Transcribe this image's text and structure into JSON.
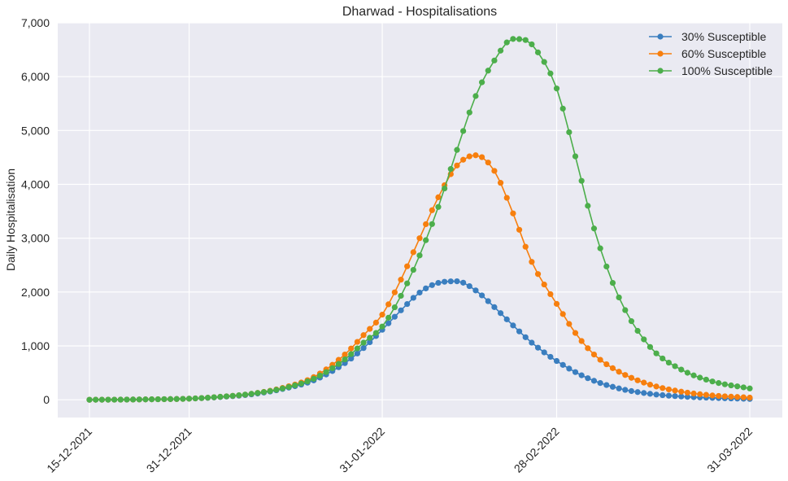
{
  "chart_data": {
    "type": "line",
    "title": "Dharwad - Hospitalisations",
    "xlabel": "",
    "ylabel": "Daily Hospitalisation",
    "x_start": "15-12-2021",
    "x_end": "31-03-2022",
    "x_ticks": [
      "15-12-2021",
      "31-12-2021",
      "31-01-2022",
      "28-02-2022",
      "31-03-2022"
    ],
    "ylim": [
      -330,
      7000
    ],
    "y_ticks": [
      0,
      1000,
      2000,
      3000,
      4000,
      5000,
      6000,
      7000
    ],
    "y_tick_labels": [
      "0",
      "1,000",
      "2,000",
      "3,000",
      "4,000",
      "5,000",
      "6,000",
      "7,000"
    ],
    "grid": true,
    "legend_position": "top-right",
    "background_color": "#eaeaf2",
    "series": [
      {
        "name": "30% Susceptible",
        "color": "#3a7ebf",
        "dates": [
          "15-12-2021",
          "20-12-2021",
          "25-12-2021",
          "31-12-2021",
          "05-01-2022",
          "10-01-2022",
          "15-01-2022",
          "20-01-2022",
          "25-01-2022",
          "28-01-2022",
          "31-01-2022",
          "03-02-2022",
          "06-02-2022",
          "09-02-2022",
          "12-02-2022",
          "15-02-2022",
          "18-02-2022",
          "21-02-2022",
          "24-02-2022",
          "28-02-2022",
          "05-03-2022",
          "10-03-2022",
          "15-03-2022",
          "20-03-2022",
          "25-03-2022",
          "31-03-2022"
        ],
        "values": [
          0,
          2,
          8,
          20,
          50,
          100,
          200,
          360,
          680,
          960,
          1300,
          1660,
          1990,
          2170,
          2200,
          2030,
          1720,
          1380,
          1060,
          720,
          400,
          210,
          110,
          60,
          35,
          15
        ]
      },
      {
        "name": "60% Susceptible",
        "color": "#f77f0e",
        "dates": [
          "15-12-2021",
          "20-12-2021",
          "25-12-2021",
          "31-12-2021",
          "05-01-2022",
          "10-01-2022",
          "15-01-2022",
          "20-01-2022",
          "25-01-2022",
          "28-01-2022",
          "31-01-2022",
          "03-02-2022",
          "06-02-2022",
          "09-02-2022",
          "12-02-2022",
          "15-02-2022",
          "18-02-2022",
          "21-02-2022",
          "24-02-2022",
          "28-02-2022",
          "03-03-2022",
          "06-03-2022",
          "10-03-2022",
          "15-03-2022",
          "20-03-2022",
          "25-03-2022",
          "31-03-2022"
        ],
        "values": [
          0,
          2,
          8,
          20,
          55,
          110,
          220,
          420,
          840,
          1200,
          1580,
          2230,
          3000,
          3760,
          4350,
          4540,
          4250,
          3460,
          2560,
          1780,
          1240,
          840,
          520,
          280,
          150,
          80,
          40
        ]
      },
      {
        "name": "100% Susceptible",
        "color": "#4cae4b",
        "dates": [
          "15-12-2021",
          "20-12-2021",
          "25-12-2021",
          "31-12-2021",
          "05-01-2022",
          "10-01-2022",
          "15-01-2022",
          "20-01-2022",
          "25-01-2022",
          "28-01-2022",
          "31-01-2022",
          "03-02-2022",
          "06-02-2022",
          "09-02-2022",
          "12-02-2022",
          "15-02-2022",
          "18-02-2022",
          "21-02-2022",
          "23-02-2022",
          "25-02-2022",
          "28-02-2022",
          "03-03-2022",
          "06-03-2022",
          "10-03-2022",
          "15-03-2022",
          "20-03-2022",
          "25-03-2022",
          "31-03-2022"
        ],
        "values": [
          0,
          2,
          8,
          20,
          55,
          110,
          210,
          390,
          750,
          1060,
          1360,
          1930,
          2680,
          3580,
          4640,
          5640,
          6300,
          6700,
          6680,
          6450,
          5780,
          4520,
          3180,
          1900,
          980,
          560,
          340,
          210
        ]
      }
    ]
  }
}
